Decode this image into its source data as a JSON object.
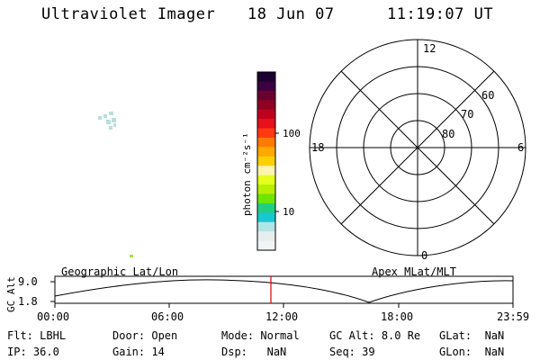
{
  "header": {
    "title": "Ultraviolet Imager",
    "date": "18 Jun 07",
    "time": "11:19:07 UT"
  },
  "colorbar": {
    "unit_label": "photon cm⁻²s⁻¹",
    "tick_labels": [
      "100",
      "10"
    ],
    "colors": [
      "#1a0030",
      "#3a0040",
      "#6a0030",
      "#900020",
      "#c0001e",
      "#e8101a",
      "#ff3a10",
      "#ff7a00",
      "#ffa800",
      "#ffd000",
      "#fff3b0",
      "#e6ff20",
      "#b6f000",
      "#6ee600",
      "#20d080",
      "#18c8d0",
      "#b0e6e6",
      "#e6eef0",
      "#f0f4f4"
    ]
  },
  "polar_plot": {
    "mlt_labels": [
      "12",
      "18",
      "6",
      "0"
    ],
    "lat_labels": [
      "60",
      "70",
      "80"
    ]
  },
  "orbit_panel": {
    "left_label": "Geographic Lat/Lon",
    "right_label": "Apex MLat/MLT",
    "y_axis_title": "GC Alt",
    "y_ticks": [
      "9.0",
      "1.8"
    ],
    "x_ticks": [
      "00:00",
      "06:00",
      "12:00",
      "18:00",
      "23:59"
    ],
    "current_time_marker": "11:19"
  },
  "status": {
    "filter": {
      "label": "Flt:",
      "value": "LBHL"
    },
    "ip": {
      "label": "IP:",
      "value": "36.0"
    },
    "door": {
      "label": "Door:",
      "value": "Open"
    },
    "gain": {
      "label": "Gain:",
      "value": "14"
    },
    "mode": {
      "label": "Mode:",
      "value": "Normal"
    },
    "dsp": {
      "label": "Dsp:",
      "value": "NaN"
    },
    "gc_alt": {
      "label": "GC Alt:",
      "value": "8.0 Re"
    },
    "seq": {
      "label": "Seq:",
      "value": "39"
    },
    "glat": {
      "label": "GLat:",
      "value": "NaN"
    },
    "glon": {
      "label": "GLon:",
      "value": "NaN"
    }
  }
}
